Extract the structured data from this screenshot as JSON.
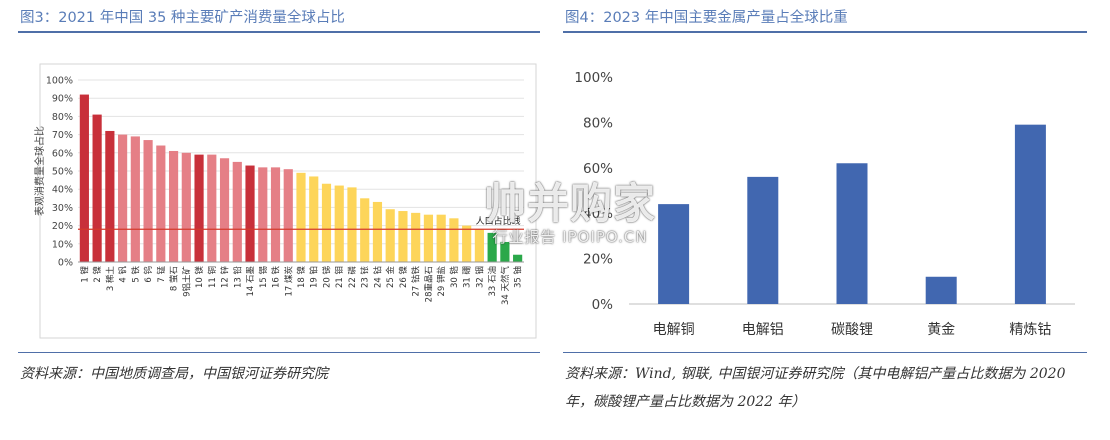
{
  "left": {
    "title": "图3：2021 年中国 35 种主要矿产消费量全球占比",
    "source": "资料来源：中国地质调查局，中国银河证券研究院"
  },
  "right": {
    "title": "图4：2023 年中国主要金属产量占全球比重",
    "source": "资料来源：Wind, 钢联, 中国银河证券研究院（其中电解铝产量占比数据为 2020 年，碳酸锂产量占比数据为 2022 年）"
  },
  "watermark": {
    "main": "帅并购家",
    "sub": "行业报告 IPOIPO.CN"
  },
  "colors": {
    "dark_red": "#c8303a",
    "light_red": "#e57f86",
    "yellow": "#fdd55a",
    "green": "#2ba84a",
    "blue": "#4167b0",
    "ref_line": "#d43a2c"
  },
  "chart_data": [
    {
      "type": "bar",
      "ylabel": "表观消费量全球占比",
      "ylim": [
        0,
        100
      ],
      "yticks": [
        "0%",
        "10%",
        "20%",
        "30%",
        "40%",
        "50%",
        "60%",
        "70%",
        "80%",
        "90%",
        "100%"
      ],
      "reference_line": {
        "value": 18,
        "label": "人口占比线"
      },
      "grid": true,
      "categories": [
        "1 锂",
        "2 镍",
        "3 稀土",
        "4 钒",
        "5 铁",
        "6 钨",
        "7 锰",
        "8 萤石",
        "9铝土矿",
        "10 镁",
        "11 铜",
        "12 锌",
        "13 铅",
        "14 石墨",
        "15 锡",
        "16 铁",
        "17 煤炭",
        "18 镍",
        "19 铂",
        "20 锑",
        "21 钼",
        "22 磷",
        "23 铱",
        "24 钴",
        "25 金",
        "26 镍",
        "27 钴铁",
        "28重晶石",
        "29 钾盐",
        "30 锆",
        "31 硼",
        "32 铟",
        "33 石油",
        "34 天然气",
        "35 铀"
      ],
      "values": [
        92,
        81,
        72,
        70,
        69,
        67,
        64,
        61,
        60,
        59,
        59,
        57,
        55,
        53,
        52,
        52,
        51,
        49,
        47,
        43,
        42,
        41,
        35,
        33,
        29,
        28,
        27,
        26,
        26,
        24,
        20,
        18,
        16,
        11,
        4
      ],
      "bar_colors": [
        "dark_red",
        "dark_red",
        "dark_red",
        "light_red",
        "light_red",
        "light_red",
        "light_red",
        "light_red",
        "light_red",
        "dark_red",
        "light_red",
        "light_red",
        "light_red",
        "dark_red",
        "light_red",
        "light_red",
        "light_red",
        "yellow",
        "yellow",
        "yellow",
        "yellow",
        "yellow",
        "yellow",
        "yellow",
        "yellow",
        "yellow",
        "yellow",
        "yellow",
        "yellow",
        "yellow",
        "yellow",
        "yellow",
        "green",
        "green",
        "green"
      ]
    },
    {
      "type": "bar",
      "ylim": [
        0,
        100
      ],
      "yticks": [
        "0%",
        "20%",
        "40%",
        "60%",
        "80%",
        "100%"
      ],
      "grid": false,
      "categories": [
        "电解铜",
        "电解铝",
        "碳酸锂",
        "黄金",
        "精炼钴"
      ],
      "values": [
        44,
        56,
        62,
        12,
        79
      ],
      "color": "blue"
    }
  ]
}
